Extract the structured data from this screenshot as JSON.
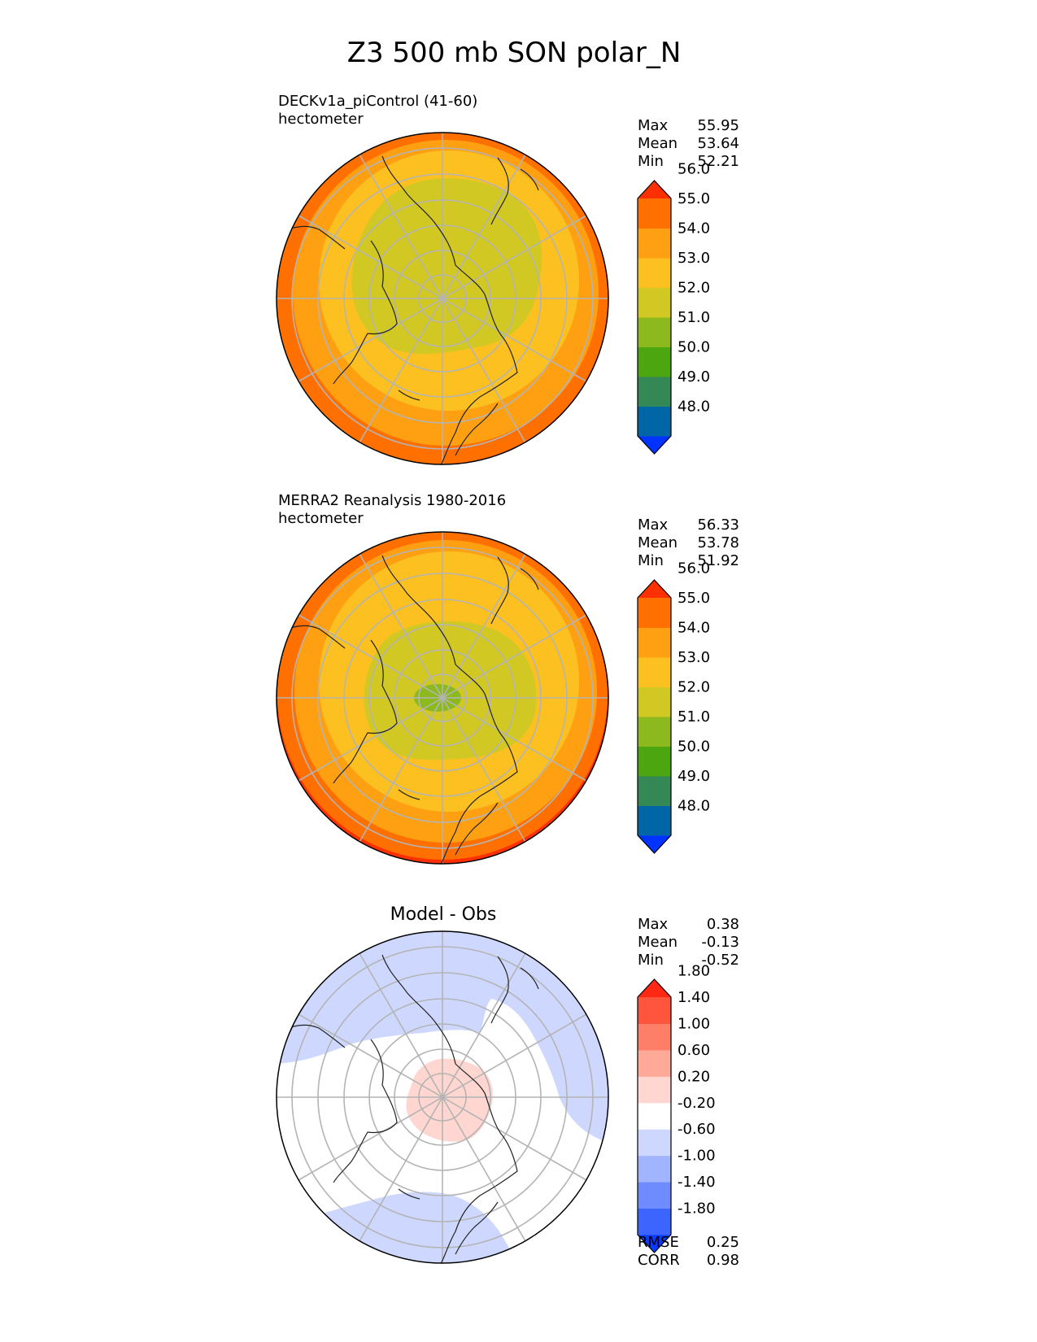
{
  "title": "Z3 500 mb SON polar_N",
  "panels": [
    {
      "id": "test",
      "label_line1": "DECKv1a_piControl (41-60)",
      "label_line2": "hectometer",
      "center_title": "",
      "stats": [
        {
          "label": "Max",
          "value": "55.95"
        },
        {
          "label": "Mean",
          "value": "53.64"
        },
        {
          "label": "Min",
          "value": "52.21"
        }
      ],
      "colorbar": {
        "colors": [
          "#0033ff",
          "#0066a6",
          "#338855",
          "#4ca60f",
          "#8cb91e",
          "#d2c823",
          "#fcc121",
          "#fea012",
          "#ff7000",
          "#fe3002"
        ],
        "ticks": [
          "48.0",
          "49.0",
          "50.0",
          "51.0",
          "52.0",
          "53.0",
          "54.0",
          "55.0",
          "56.0"
        ]
      },
      "extra_stats": []
    },
    {
      "id": "ref",
      "label_line1": "MERRA2 Reanalysis 1980-2016",
      "label_line2": "hectometer",
      "center_title": "",
      "stats": [
        {
          "label": "Max",
          "value": "56.33"
        },
        {
          "label": "Mean",
          "value": "53.78"
        },
        {
          "label": "Min",
          "value": "51.92"
        }
      ],
      "colorbar": {
        "colors": [
          "#0033ff",
          "#0066a6",
          "#338855",
          "#4ca60f",
          "#8cb91e",
          "#d2c823",
          "#fcc121",
          "#fea012",
          "#ff7000",
          "#fe3002"
        ],
        "ticks": [
          "48.0",
          "49.0",
          "50.0",
          "51.0",
          "52.0",
          "53.0",
          "54.0",
          "55.0",
          "56.0"
        ]
      },
      "extra_stats": []
    },
    {
      "id": "diff",
      "label_line1": "",
      "label_line2": "",
      "center_title": "Model - Obs",
      "stats": [
        {
          "label": "Max",
          "value": "0.38"
        },
        {
          "label": "Mean",
          "value": "-0.13"
        },
        {
          "label": "Min",
          "value": "-0.52"
        }
      ],
      "colorbar": {
        "colors": [
          "#0a3cff",
          "#3c64ff",
          "#6e8cff",
          "#a0b4ff",
          "#ced8ff",
          "#ffffff",
          "#ffd6d0",
          "#ffaa98",
          "#ff7e68",
          "#ff553c",
          "#ff2814"
        ],
        "ticks": [
          "-1.80",
          "-1.40",
          "-1.00",
          "-0.60",
          "-0.20",
          "0.20",
          "0.60",
          "1.00",
          "1.40",
          "1.80"
        ]
      },
      "extra_stats": [
        {
          "label": "RMSE",
          "value": "0.25"
        },
        {
          "label": "CORR",
          "value": "0.98"
        }
      ]
    }
  ]
}
